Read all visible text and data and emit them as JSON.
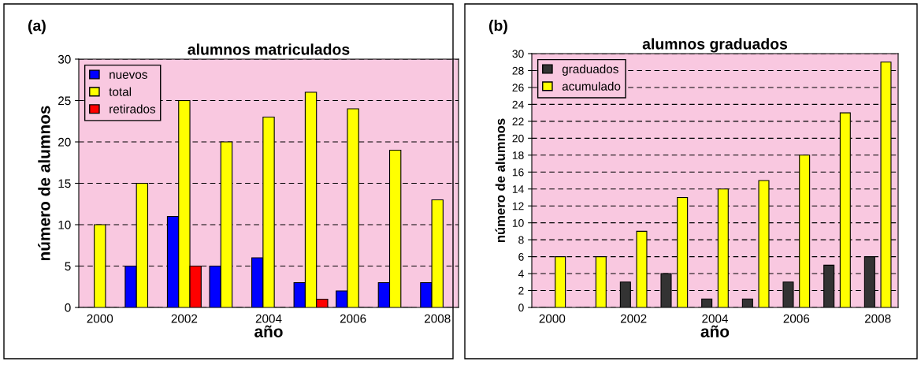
{
  "chart_data": [
    {
      "type": "bar",
      "title": "alumnos matriculados",
      "xlabel": "año",
      "ylabel": "número de alumnos",
      "annotations": [
        "(a)"
      ],
      "categories": [
        "2000",
        null,
        "2002",
        null,
        "2004",
        null,
        "2006",
        null,
        "2008"
      ],
      "series": [
        {
          "name": "nuevos",
          "color": "#0000ff",
          "values": [
            0,
            5,
            11,
            5,
            6,
            3,
            2,
            3,
            3
          ]
        },
        {
          "name": "total",
          "color": "#ffff00",
          "values": [
            10,
            15,
            25,
            20,
            23,
            26,
            24,
            19,
            13
          ]
        },
        {
          "name": "retirados",
          "color": "#ff0000",
          "values": [
            0,
            0,
            5,
            0,
            0,
            1,
            0,
            0,
            0
          ]
        }
      ],
      "ylim": [
        0,
        30
      ],
      "yticks": [
        0,
        5,
        10,
        15,
        20,
        25,
        30
      ],
      "grid": "y",
      "legend": "top left"
    },
    {
      "type": "bar",
      "title": "alumnos graduados",
      "xlabel": "año",
      "ylabel": "número de alumnos",
      "annotations": [
        "(b)"
      ],
      "categories": [
        "2000",
        null,
        "2002",
        null,
        "2004",
        null,
        "2006",
        null,
        "2008"
      ],
      "series": [
        {
          "name": "graduados",
          "color": "#333333",
          "values": [
            0,
            0,
            3,
            4,
            1,
            1,
            3,
            5,
            6
          ]
        },
        {
          "name": "acumulado",
          "color": "#ffff00",
          "values": [
            6,
            6,
            9,
            13,
            14,
            15,
            18,
            23,
            29
          ]
        }
      ],
      "ylim": [
        0,
        30
      ],
      "yticks": [
        0,
        2,
        4,
        6,
        8,
        10,
        12,
        14,
        16,
        18,
        20,
        22,
        24,
        26,
        28,
        30
      ],
      "grid": "y",
      "legend": "top left"
    }
  ]
}
